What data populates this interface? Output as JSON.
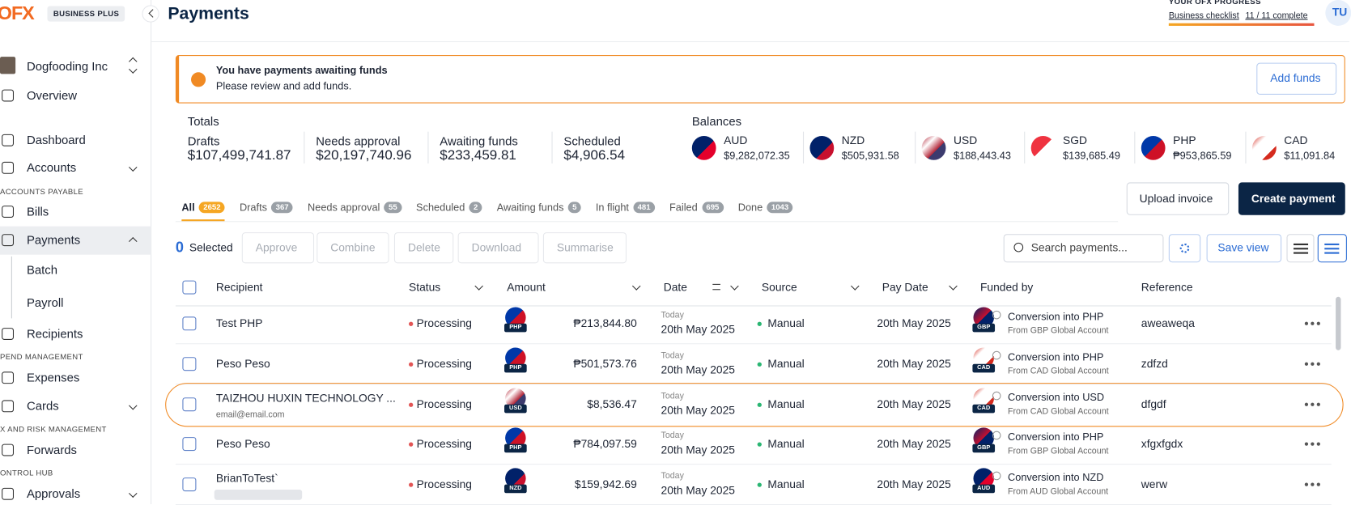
{
  "sidebar": {
    "logo": "OFX",
    "plan": "BUSINESS PLUS",
    "company": "Dogfooding Inc",
    "nav": [
      {
        "label": "Overview"
      },
      {
        "label": "Dashboard"
      },
      {
        "label": "Accounts"
      },
      {
        "section": "ACCOUNTS PAYABLE"
      },
      {
        "label": "Bills"
      },
      {
        "label": "Payments"
      },
      {
        "label": "Batch"
      },
      {
        "label": "Payroll"
      },
      {
        "label": "Recipients"
      },
      {
        "section": "PEND MANAGEMENT"
      },
      {
        "label": "Expenses"
      },
      {
        "label": "Cards"
      },
      {
        "section": "X AND RISK MANAGEMENT"
      },
      {
        "label": "Forwards"
      },
      {
        "section": "ONTROL HUB"
      },
      {
        "label": "Approvals"
      }
    ]
  },
  "header": {
    "title": "Payments",
    "progress_title": "YOUR OFX PROGRESS",
    "progress_label": "Business checklist",
    "progress_count": "11 / 11 complete",
    "avatar": "TU"
  },
  "alert": {
    "title": "You have payments awaiting funds",
    "message": "Please review and add funds.",
    "button": "Add funds"
  },
  "totals": {
    "title": "Totals",
    "items": [
      {
        "label": "Drafts",
        "value": "$107,499,741.87"
      },
      {
        "label": "Needs approval",
        "value": "$20,197,740.96"
      },
      {
        "label": "Awaiting funds",
        "value": "$233,459.81"
      },
      {
        "label": "Scheduled",
        "value": "$4,906.54"
      }
    ]
  },
  "balances": {
    "title": "Balances",
    "items": [
      {
        "code": "AUD",
        "amount": "$9,282,072.35"
      },
      {
        "code": "NZD",
        "amount": "$505,931.58"
      },
      {
        "code": "USD",
        "amount": "$188,443.43"
      },
      {
        "code": "SGD",
        "amount": "$139,685.49"
      },
      {
        "code": "PHP",
        "amount": "₱953,865.59"
      },
      {
        "code": "CAD",
        "amount": "$11,091.84"
      }
    ]
  },
  "tabs": [
    {
      "label": "All",
      "count": "2652"
    },
    {
      "label": "Drafts",
      "count": "367"
    },
    {
      "label": "Needs approval",
      "count": "55"
    },
    {
      "label": "Scheduled",
      "count": "2"
    },
    {
      "label": "Awaiting funds",
      "count": "5"
    },
    {
      "label": "In flight",
      "count": "481"
    },
    {
      "label": "Failed",
      "count": "695"
    },
    {
      "label": "Done",
      "count": "1043"
    }
  ],
  "actions": {
    "upload": "Upload invoice",
    "create": "Create payment"
  },
  "toolbar": {
    "selected_count": "0",
    "selected_label": "Selected",
    "buttons": [
      "Approve",
      "Combine",
      "Delete",
      "Download",
      "Summarise"
    ],
    "search": "Search payments...",
    "save_view": "Save view"
  },
  "table": {
    "columns": [
      "Recipient",
      "Status",
      "Amount",
      "Date",
      "Source",
      "Pay Date",
      "Funded by",
      "Reference"
    ],
    "rows": [
      {
        "recipient": "Test PHP",
        "status": "Processing",
        "currency": "PHP",
        "amount": "₱213,844.80",
        "date_label": "Today",
        "date": "20th May 2025",
        "source": "Manual",
        "pay_date": "20th May 2025",
        "funded_title": "Conversion into PHP",
        "funded_currency": "GBP",
        "funded_sub": "From GBP Global Account",
        "reference": "aweaweqa"
      },
      {
        "recipient": "Peso Peso",
        "status": "Processing",
        "currency": "PHP",
        "amount": "₱501,573.76",
        "date_label": "Today",
        "date": "20th May 2025",
        "source": "Manual",
        "pay_date": "20th May 2025",
        "funded_title": "Conversion into PHP",
        "funded_currency": "CAD",
        "funded_sub": "From CAD Global Account",
        "reference": "zdfzd"
      },
      {
        "recipient": "TAIZHOU HUXIN TECHNOLOGY ...",
        "email": "email@email.com",
        "status": "Processing",
        "currency": "USD",
        "amount": "$8,536.47",
        "date_label": "Today",
        "date": "20th May 2025",
        "source": "Manual",
        "pay_date": "20th May 2025",
        "funded_title": "Conversion into USD",
        "funded_currency": "CAD",
        "funded_sub": "From CAD Global Account",
        "reference": "dfgdf"
      },
      {
        "recipient": "Peso Peso",
        "status": "Processing",
        "currency": "PHP",
        "amount": "₱784,097.59",
        "date_label": "Today",
        "date": "20th May 2025",
        "source": "Manual",
        "pay_date": "20th May 2025",
        "funded_title": "Conversion into PHP",
        "funded_currency": "GBP",
        "funded_sub": "From GBP Global Account",
        "reference": "xfgxfgdx"
      },
      {
        "recipient": "BrianToTest`",
        "status": "Processing",
        "currency": "NZD",
        "amount": "$159,942.69",
        "date_label": "Today",
        "date": "20th May 2025",
        "source": "Manual",
        "pay_date": "20th May 2025",
        "funded_title": "Conversion into NZD",
        "funded_currency": "AUD",
        "funded_sub": "From AUD Global Account",
        "reference": "werw"
      }
    ]
  }
}
